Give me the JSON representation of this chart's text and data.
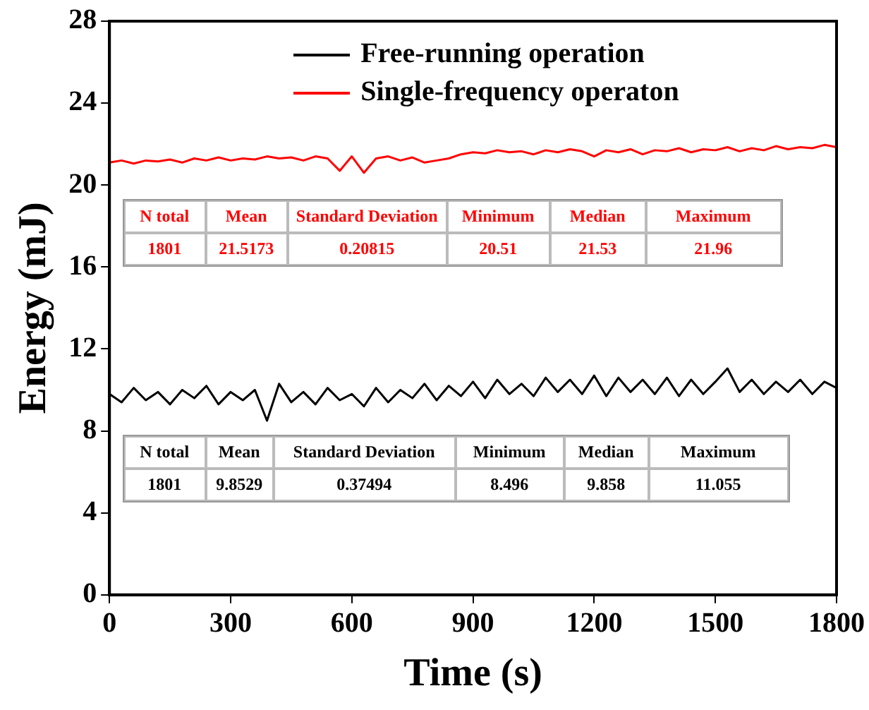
{
  "chart_data": {
    "type": "line",
    "xlabel": "Time (s)",
    "ylabel": "Energy (mJ)",
    "x": [
      0,
      30,
      60,
      90,
      120,
      150,
      180,
      210,
      240,
      270,
      300,
      330,
      360,
      390,
      420,
      450,
      480,
      510,
      540,
      570,
      600,
      630,
      660,
      690,
      720,
      750,
      780,
      810,
      840,
      870,
      900,
      930,
      960,
      990,
      1020,
      1050,
      1080,
      1110,
      1140,
      1170,
      1200,
      1230,
      1260,
      1290,
      1320,
      1350,
      1380,
      1410,
      1440,
      1470,
      1500,
      1530,
      1560,
      1590,
      1620,
      1650,
      1680,
      1710,
      1740,
      1770,
      1800
    ],
    "series": [
      {
        "name": "Free-running operation",
        "color": "#000000",
        "values": [
          9.8,
          9.4,
          10.1,
          9.5,
          9.9,
          9.3,
          10.0,
          9.6,
          10.2,
          9.3,
          9.9,
          9.5,
          10.0,
          8.5,
          10.3,
          9.4,
          9.9,
          9.3,
          10.1,
          9.5,
          9.8,
          9.2,
          10.1,
          9.4,
          10.0,
          9.6,
          10.3,
          9.5,
          10.2,
          9.7,
          10.4,
          9.6,
          10.5,
          9.8,
          10.3,
          9.7,
          10.6,
          9.9,
          10.5,
          9.8,
          10.7,
          9.7,
          10.6,
          9.9,
          10.5,
          9.8,
          10.6,
          9.7,
          10.5,
          9.8,
          10.4,
          11.05,
          9.9,
          10.5,
          9.8,
          10.4,
          9.9,
          10.5,
          9.8,
          10.4,
          10.1
        ]
      },
      {
        "name": "Single-frequency operaton",
        "color": "#ff0000",
        "values": [
          21.1,
          21.2,
          21.05,
          21.2,
          21.15,
          21.25,
          21.1,
          21.3,
          21.2,
          21.35,
          21.2,
          21.3,
          21.25,
          21.4,
          21.3,
          21.35,
          21.2,
          21.4,
          21.3,
          20.7,
          21.4,
          20.6,
          21.3,
          21.4,
          21.2,
          21.35,
          21.1,
          21.2,
          21.3,
          21.5,
          21.6,
          21.55,
          21.7,
          21.6,
          21.65,
          21.5,
          21.7,
          21.6,
          21.75,
          21.65,
          21.4,
          21.7,
          21.6,
          21.75,
          21.5,
          21.7,
          21.65,
          21.8,
          21.6,
          21.75,
          21.7,
          21.85,
          21.65,
          21.8,
          21.7,
          21.9,
          21.75,
          21.85,
          21.8,
          21.96,
          21.85
        ]
      }
    ],
    "xlim": [
      0,
      1800
    ],
    "xticks": [
      0,
      300,
      600,
      900,
      1200,
      1500,
      1800
    ],
    "ylim": [
      0,
      28
    ],
    "yticks": [
      0,
      4,
      8,
      12,
      16,
      20,
      24,
      28
    ],
    "grid": false,
    "legend": "top",
    "marker": "none",
    "line_style": "solid",
    "annotations": [
      "N total",
      "Mean",
      "Standard Deviation",
      "Minimum",
      "Median",
      "Maximum",
      "1801",
      "21.5173",
      "0.20815",
      "20.51",
      "21.53",
      "21.96",
      "N total",
      "Mean",
      "Standard Deviation",
      "Minimum",
      "Median",
      "Maximum",
      "1801",
      "9.8529",
      "0.37494",
      "8.496",
      "9.858",
      "11.055"
    ]
  }
}
